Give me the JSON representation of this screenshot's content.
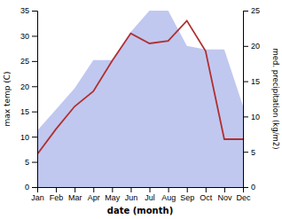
{
  "chart_data": {
    "type": "line",
    "categories": [
      "Jan",
      "Feb",
      "Mar",
      "Apr",
      "May",
      "Jun",
      "Jul",
      "Aug",
      "Sep",
      "Oct",
      "Nov",
      "Dec"
    ],
    "xlabel": "date (month)",
    "ylabel": "max temp (C)",
    "y2label": "med. precipitation (kg/m2)",
    "ylim": [
      0,
      35
    ],
    "yticks": [
      0,
      5,
      10,
      15,
      20,
      25,
      30,
      35
    ],
    "y2lim": [
      0,
      25
    ],
    "y2ticks": [
      0,
      5,
      10,
      15,
      20,
      25
    ],
    "grid": false,
    "series": [
      {
        "type": "area",
        "axis": "y2",
        "color": "#c0c8f0",
        "values": [
          8,
          11,
          14,
          18,
          18,
          22,
          25,
          25,
          20,
          19.5,
          19.5,
          11.5
        ]
      },
      {
        "type": "line",
        "color": "#b03030",
        "values": [
          6.5,
          11.5,
          16.0,
          19.0,
          25.0,
          30.5,
          28.5,
          29.0,
          33.0,
          27.0,
          9.5,
          9.5
        ]
      }
    ]
  }
}
